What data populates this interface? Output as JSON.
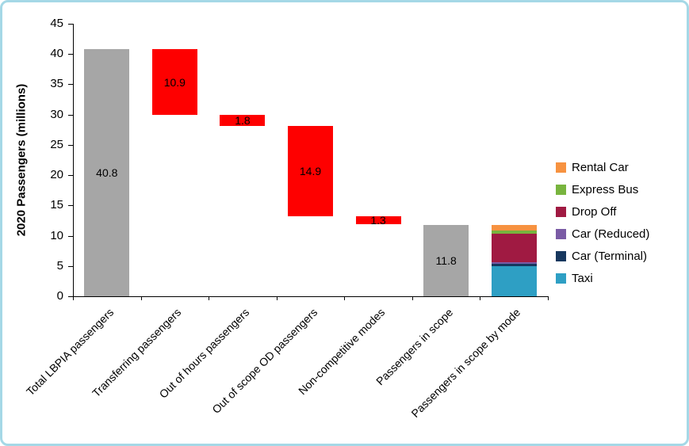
{
  "frame": {
    "border_color": "#a5d8e6",
    "background": "#ffffff"
  },
  "chart_data": {
    "type": "bar",
    "subtype": "waterfall-with-stacked-final-bar",
    "title": "",
    "ylabel": "2020 Passengers  (millions)",
    "xlabel": "",
    "ylim": [
      0,
      45
    ],
    "ytick_step": 5,
    "yticks": [
      0,
      5,
      10,
      15,
      20,
      25,
      30,
      35,
      40,
      45
    ],
    "grid": false,
    "categories": [
      "Total LBPIA passengers",
      "Transferring passengers",
      "Out of hours passengers",
      "Out of scope OD passengers",
      "Non-competitive modes",
      "Passengers in scope",
      "Passengers in scope by mode"
    ],
    "bars": [
      {
        "category": "Total LBPIA passengers",
        "kind": "total",
        "start": 0,
        "end": 40.8,
        "label": "40.8",
        "color_key": "gray"
      },
      {
        "category": "Transferring passengers",
        "kind": "decrease",
        "start": 29.9,
        "end": 40.8,
        "label": "10.9",
        "color_key": "red"
      },
      {
        "category": "Out of hours passengers",
        "kind": "decrease",
        "start": 28.1,
        "end": 29.9,
        "label": "1.8",
        "color_key": "red"
      },
      {
        "category": "Out of scope OD passengers",
        "kind": "decrease",
        "start": 13.2,
        "end": 28.1,
        "label": "14.9",
        "color_key": "red"
      },
      {
        "category": "Non-competitive modes",
        "kind": "decrease",
        "start": 11.9,
        "end": 13.2,
        "label": "1.3",
        "color_key": "red"
      },
      {
        "category": "Passengers in scope",
        "kind": "total",
        "start": 0,
        "end": 11.8,
        "label": "11.8",
        "color_key": "gray"
      },
      {
        "category": "Passengers in scope by mode",
        "kind": "stacked",
        "segments": [
          {
            "name": "Taxi",
            "value": 5.0
          },
          {
            "name": "Car (Terminal)",
            "value": 0.3
          },
          {
            "name": "Car (Reduced)",
            "value": 0.3
          },
          {
            "name": "Drop Off",
            "value": 4.7
          },
          {
            "name": "Express Bus",
            "value": 0.5
          },
          {
            "name": "Rental Car",
            "value": 1.0
          }
        ]
      }
    ],
    "colors": {
      "gray": "#a6a6a6",
      "red": "#fe0000"
    },
    "legend": {
      "position": "right",
      "items": [
        {
          "label": "Rental Car",
          "color": "#f79240"
        },
        {
          "label": "Express Bus",
          "color": "#78b43e"
        },
        {
          "label": "Drop Off",
          "color": "#a01a42"
        },
        {
          "label": "Car (Reduced)",
          "color": "#7a5ba5"
        },
        {
          "label": "Car (Terminal)",
          "color": "#17375e"
        },
        {
          "label": "Taxi",
          "color": "#2e9fc4"
        }
      ]
    }
  }
}
